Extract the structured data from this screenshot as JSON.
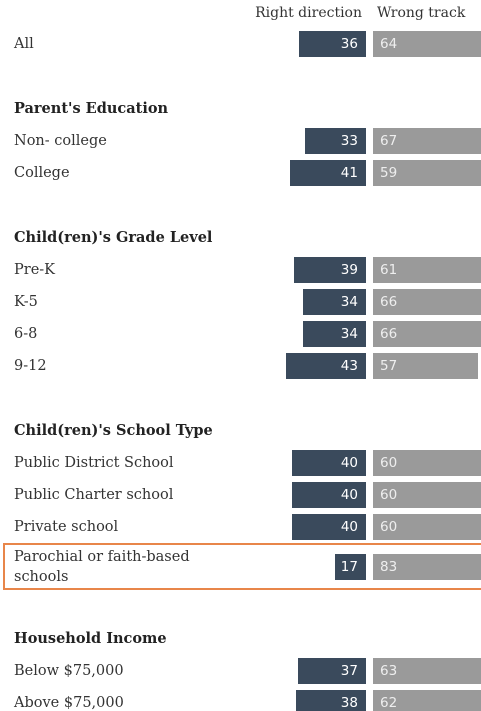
{
  "chart_data": [
    {
      "type": "diverging-bar",
      "categories": [
        "All"
      ],
      "series": [
        {
          "name": "Right direction",
          "color": "#3a4a5c",
          "values": [
            36
          ]
        },
        {
          "name": "Wrong track",
          "color": "#9a9a9a",
          "values": [
            64
          ]
        }
      ]
    },
    {
      "type": "diverging-bar",
      "title": "Parent's Education",
      "categories": [
        "Non- college",
        "College"
      ],
      "series": [
        {
          "values": [
            33,
            41
          ]
        },
        {
          "values": [
            67,
            59
          ]
        }
      ]
    },
    {
      "type": "diverging-bar",
      "title": "Child(ren)'s Grade Level",
      "categories": [
        "Pre-K",
        "K-5",
        "6-8",
        "9-12"
      ],
      "series": [
        {
          "values": [
            39,
            34,
            34,
            43
          ]
        },
        {
          "values": [
            61,
            66,
            66,
            57
          ]
        }
      ]
    },
    {
      "type": "diverging-bar",
      "title": "Child(ren)'s School Type",
      "categories": [
        "Public District School",
        "Public Charter school",
        "Private school",
        "Parochial or faith-based schools"
      ],
      "series": [
        {
          "values": [
            40,
            40,
            40,
            17
          ]
        },
        {
          "values": [
            60,
            60,
            60,
            83
          ]
        }
      ],
      "highlight": [
        3
      ]
    },
    {
      "type": "diverging-bar",
      "title": "Household Income",
      "categories": [
        "Below $75,000",
        "Above $75,000"
      ],
      "series": [
        {
          "values": [
            37,
            38
          ]
        },
        {
          "values": [
            63,
            62
          ]
        }
      ]
    }
  ]
}
